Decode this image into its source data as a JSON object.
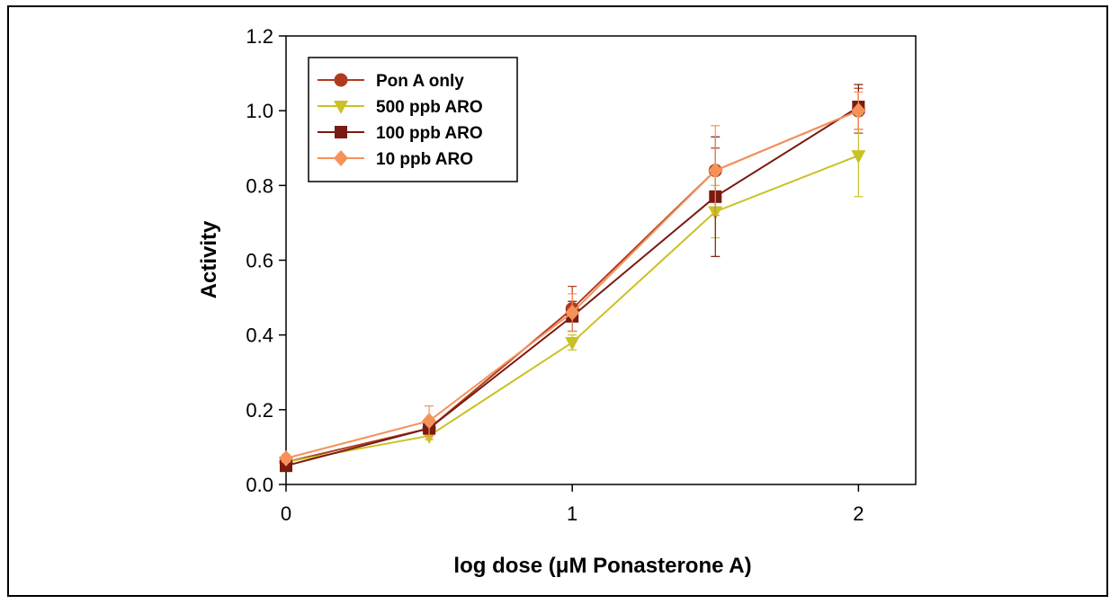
{
  "chart_data": {
    "type": "line",
    "title": "",
    "xlabel": "log dose (μM Ponasterone A)",
    "ylabel": "Activity",
    "xlim": [
      0,
      2.2
    ],
    "ylim": [
      0,
      1.2
    ],
    "x_ticks": [
      "0",
      "1",
      "2"
    ],
    "y_ticks": [
      "0.0",
      "0.2",
      "0.4",
      "0.6",
      "0.8",
      "1.0",
      "1.2"
    ],
    "grid": false,
    "legend_position": "top-left",
    "x": [
      0,
      0.5,
      1,
      1.5,
      2
    ],
    "series": [
      {
        "name": "Pon A only",
        "marker": "circle",
        "color": "#b03a1e",
        "values": [
          0.06,
          0.15,
          0.47,
          0.84,
          1.0
        ],
        "errors": [
          0.01,
          0.01,
          0.06,
          0.06,
          0.06
        ]
      },
      {
        "name": "500 ppb ARO",
        "marker": "triangle-down",
        "color": "#c9c226",
        "values": [
          0.06,
          0.13,
          0.38,
          0.73,
          0.88
        ],
        "errors": [
          0.01,
          0.01,
          0.02,
          0.07,
          0.11
        ]
      },
      {
        "name": "100 ppb ARO",
        "marker": "square",
        "color": "#7a1a10",
        "values": [
          0.05,
          0.15,
          0.45,
          0.77,
          1.01
        ],
        "errors": [
          0.01,
          0.01,
          0.04,
          0.16,
          0.06
        ]
      },
      {
        "name": "10 ppb ARO",
        "marker": "diamond",
        "color": "#f5925a",
        "values": [
          0.07,
          0.17,
          0.46,
          0.84,
          1.0
        ],
        "errors": [
          0.01,
          0.04,
          0.05,
          0.12,
          0.05
        ]
      }
    ]
  }
}
